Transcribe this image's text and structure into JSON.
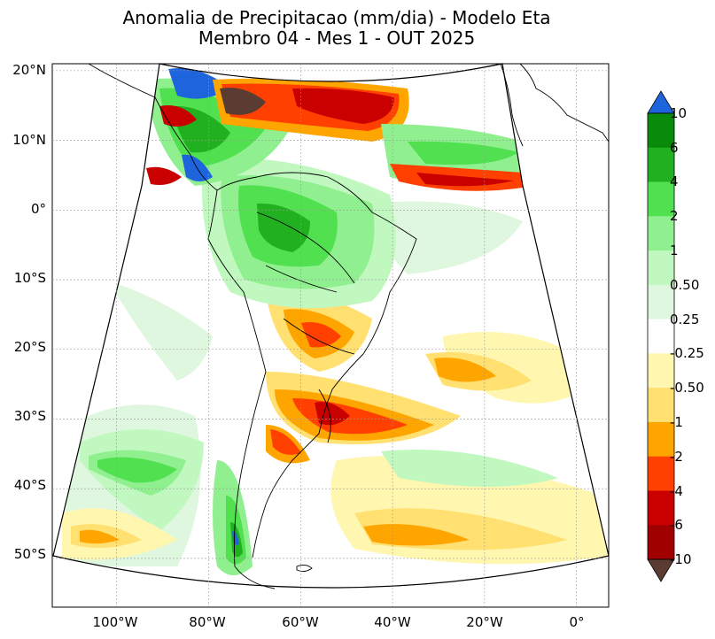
{
  "title_line1": "Anomalia de Precipitacao (mm/dia) - Modelo Eta",
  "title_line2": "Membro 04 - Mes 1 - OUT 2025",
  "map": {
    "lat_labels": [
      "20°N",
      "10°N",
      "0°",
      "10°S",
      "20°S",
      "30°S",
      "40°S",
      "50°S"
    ],
    "lon_labels": [
      "100°W",
      "80°W",
      "60°W",
      "40°W",
      "20°W",
      "0°"
    ],
    "lats": [
      20,
      10,
      0,
      -10,
      -20,
      -30,
      -40,
      -50
    ],
    "lons": [
      -100,
      -80,
      -60,
      -40,
      -20,
      0
    ],
    "lat_range": [
      -57,
      21
    ],
    "lon_range": [
      -114,
      7
    ]
  },
  "colorbar": {
    "labels": [
      "10",
      "6",
      "4",
      "2",
      "1",
      "0.50",
      "0.25",
      "-0.25",
      "-0.50",
      "-1",
      "-2",
      "-4",
      "-6",
      "-10"
    ],
    "colors": [
      "#0a8a0a",
      "#20b020",
      "#50e050",
      "#90f090",
      "#c0f8c0",
      "#dff7df",
      "#ffffff",
      "#fff6b0",
      "#ffe070",
      "#ffa500",
      "#ff4000",
      "#c80000",
      "#a00000"
    ],
    "over_color": "#1e64dc",
    "under_color": "#5a3c32"
  }
}
